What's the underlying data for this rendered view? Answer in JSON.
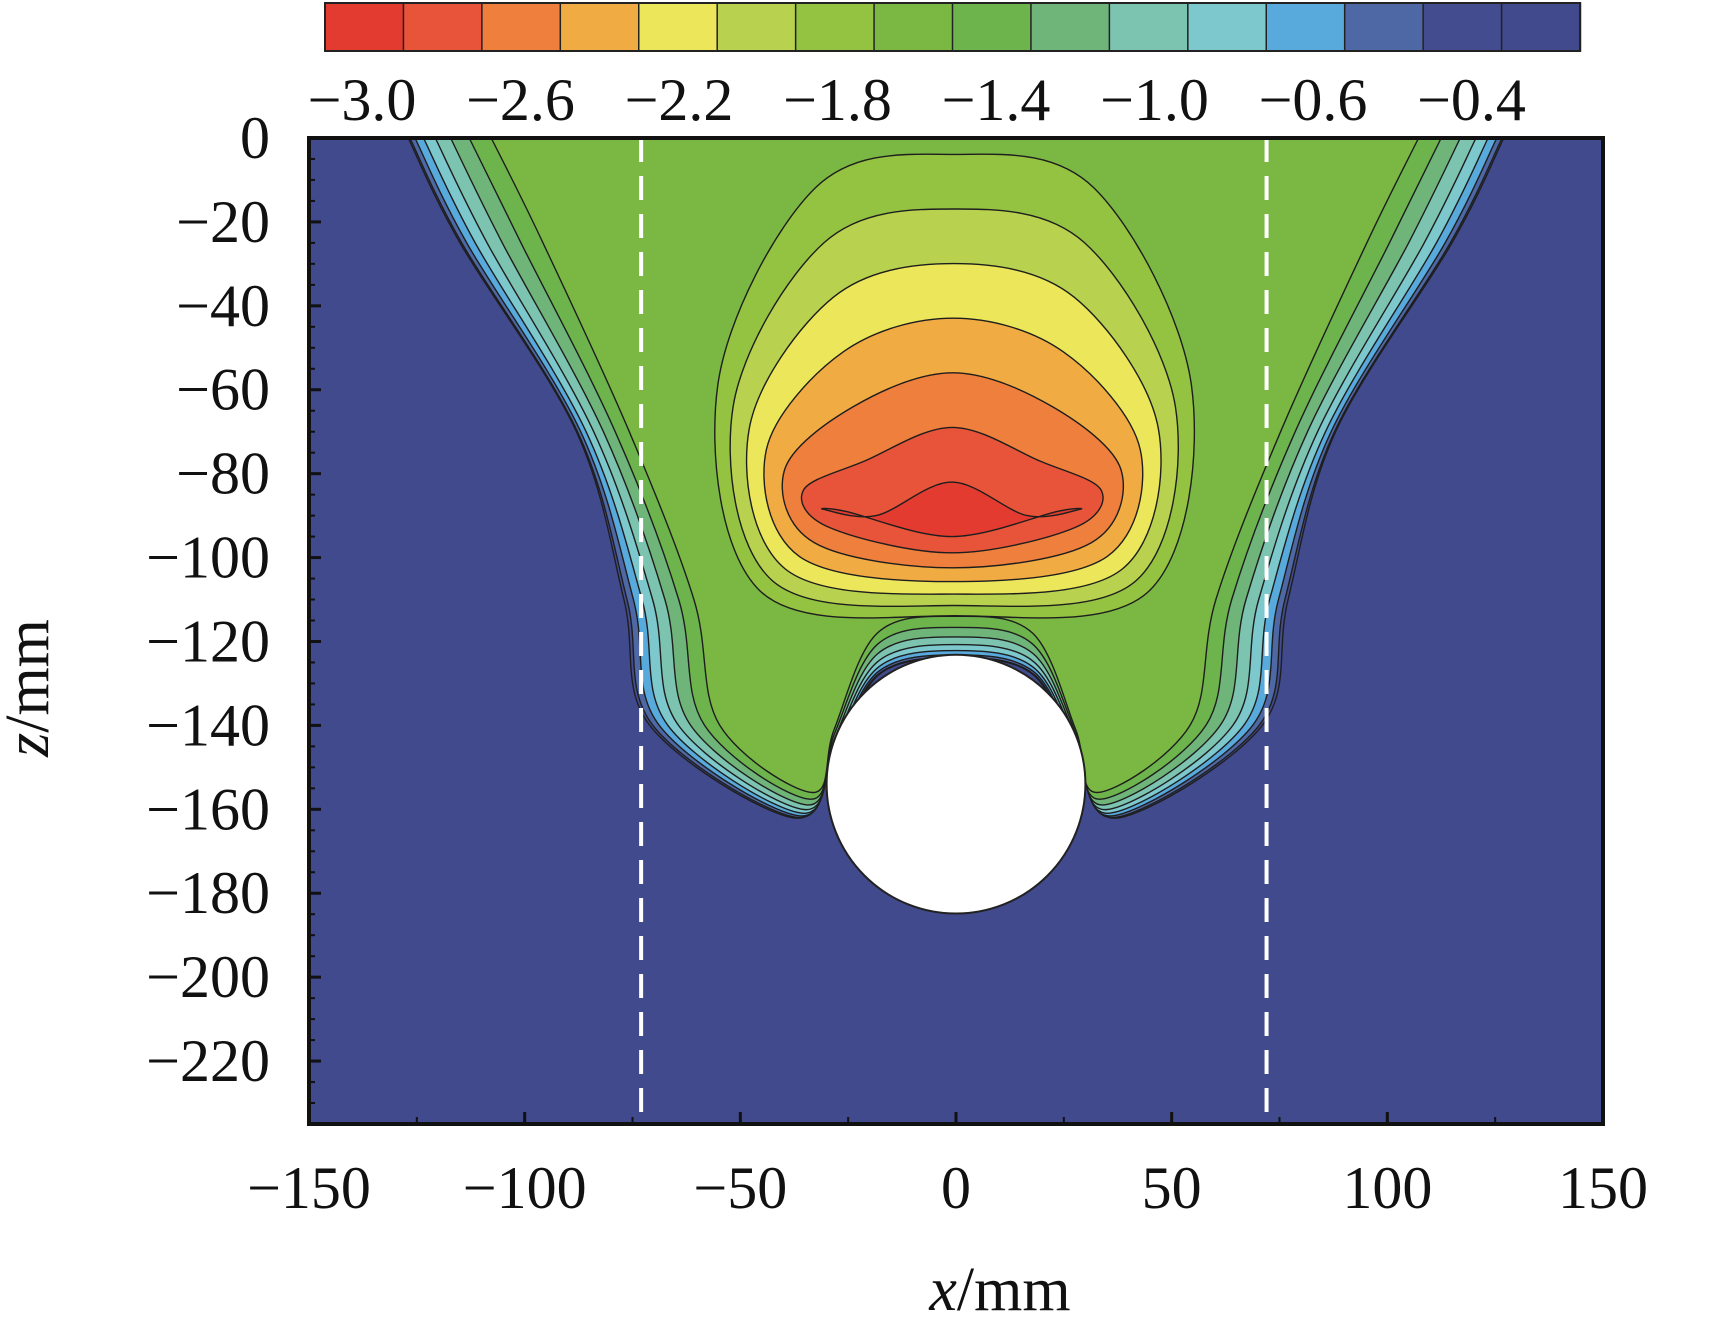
{
  "chart_data": {
    "type": "heatmap",
    "subtype": "filled-contour",
    "xlabel_var": "x",
    "xlabel_unit": "/mm",
    "ylabel_var": "z",
    "ylabel_unit": "/mm",
    "xlim": [
      -150,
      150
    ],
    "ylim": [
      -235,
      0
    ],
    "x_ticks": [
      -150,
      -100,
      -50,
      0,
      50,
      100,
      150
    ],
    "x_tick_labels": [
      "−150",
      "−100",
      "−50",
      "0",
      "50",
      "100",
      "150"
    ],
    "y_ticks": [
      0,
      -20,
      -40,
      -60,
      -80,
      -100,
      -120,
      -140,
      -160,
      -180,
      -200,
      -220
    ],
    "y_tick_labels": [
      "0",
      "−20",
      "−40",
      "−60",
      "−80",
      "−100",
      "−120",
      "−140",
      "−160",
      "−180",
      "−200",
      "−220"
    ],
    "colorbar": {
      "position": "top",
      "colors": [
        "#e33b2f",
        "#e8543a",
        "#ef7f3c",
        "#f1ab43",
        "#ece65a",
        "#b8d24f",
        "#94c342",
        "#7ab843",
        "#6db44c",
        "#6fb57a",
        "#7cc3b0",
        "#7cc8cc",
        "#58aadd",
        "#4e68a5",
        "#434c8e",
        "#414a8c"
      ],
      "tick_labels": [
        "−3.0",
        "−2.6",
        "−2.2",
        "−1.8",
        "−1.4",
        "−1.0",
        "−0.6",
        "−0.4"
      ]
    },
    "peak": {
      "x": 0,
      "z": -92,
      "level": -3.0
    },
    "obstacle_circle": {
      "center_x": 0,
      "center_z": -154,
      "radius": 30
    },
    "dashed_lines_x": [
      -73,
      72
    ],
    "background_color": "#414a8c"
  }
}
